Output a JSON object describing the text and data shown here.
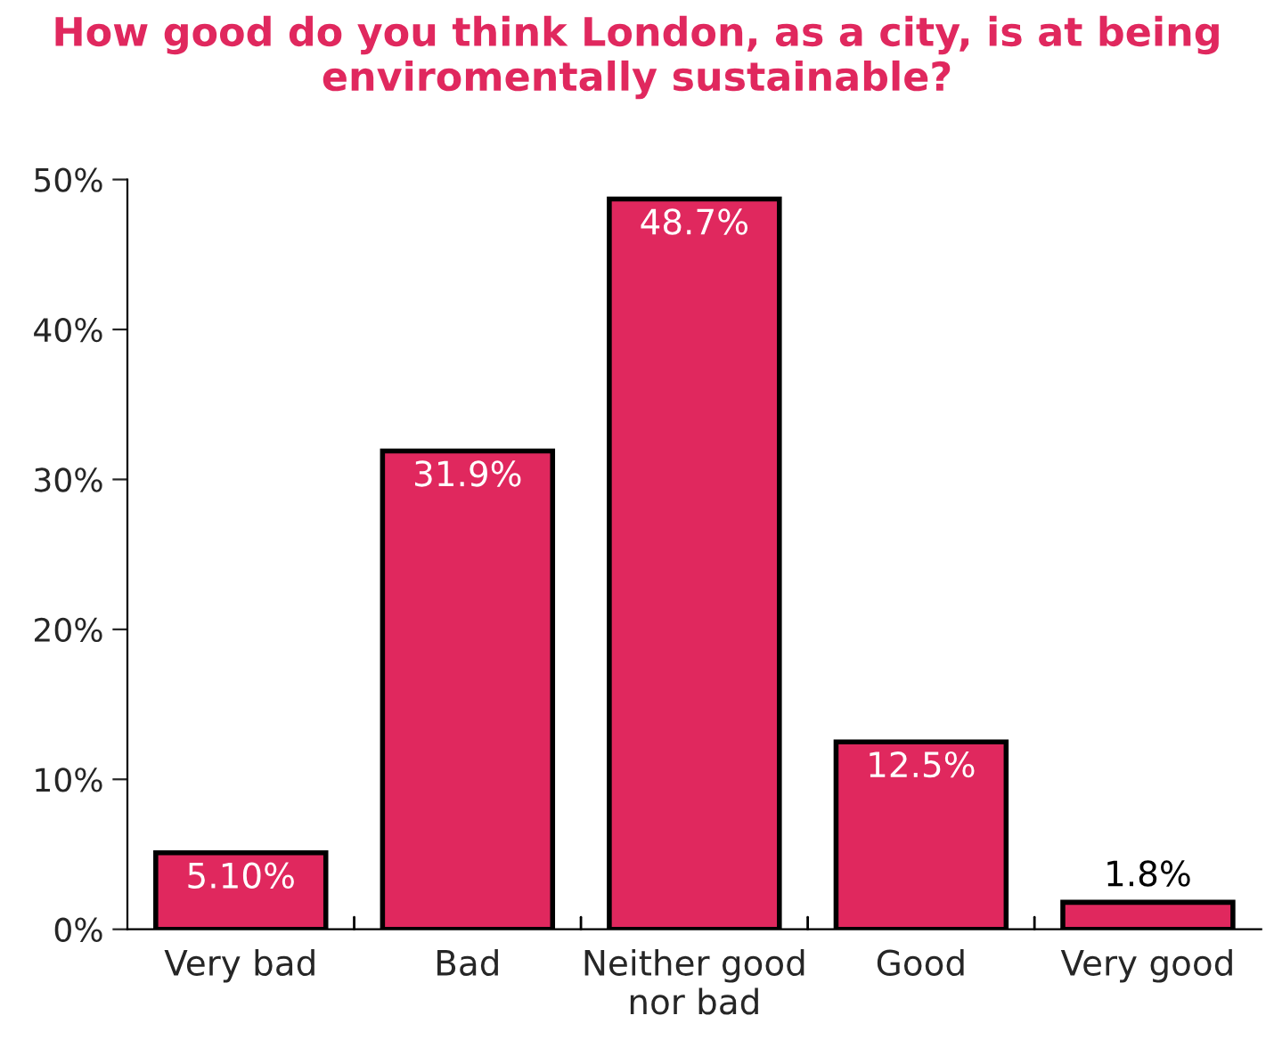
{
  "chart_data": {
    "type": "bar",
    "title": "How good do you think London, as a city, is at being enviromentally sustainable?",
    "categories": [
      "Very bad",
      "Bad",
      "Neither good\nnor bad",
      "Good",
      "Very good"
    ],
    "values": [
      5.1,
      31.9,
      48.7,
      12.5,
      1.8
    ],
    "value_labels": [
      "5.10%",
      "31.9%",
      "48.7%",
      "12.5%",
      "1.8%"
    ],
    "color": "#e0285e",
    "ylim": [
      0,
      50
    ],
    "yticks": [
      {
        "value": 0,
        "label": "0%"
      },
      {
        "value": 10,
        "label": "10%"
      },
      {
        "value": 20,
        "label": "20%"
      },
      {
        "value": 30,
        "label": "30%"
      },
      {
        "value": 40,
        "label": "40%"
      },
      {
        "value": 50,
        "label": "50%"
      }
    ],
    "grid": false
  }
}
